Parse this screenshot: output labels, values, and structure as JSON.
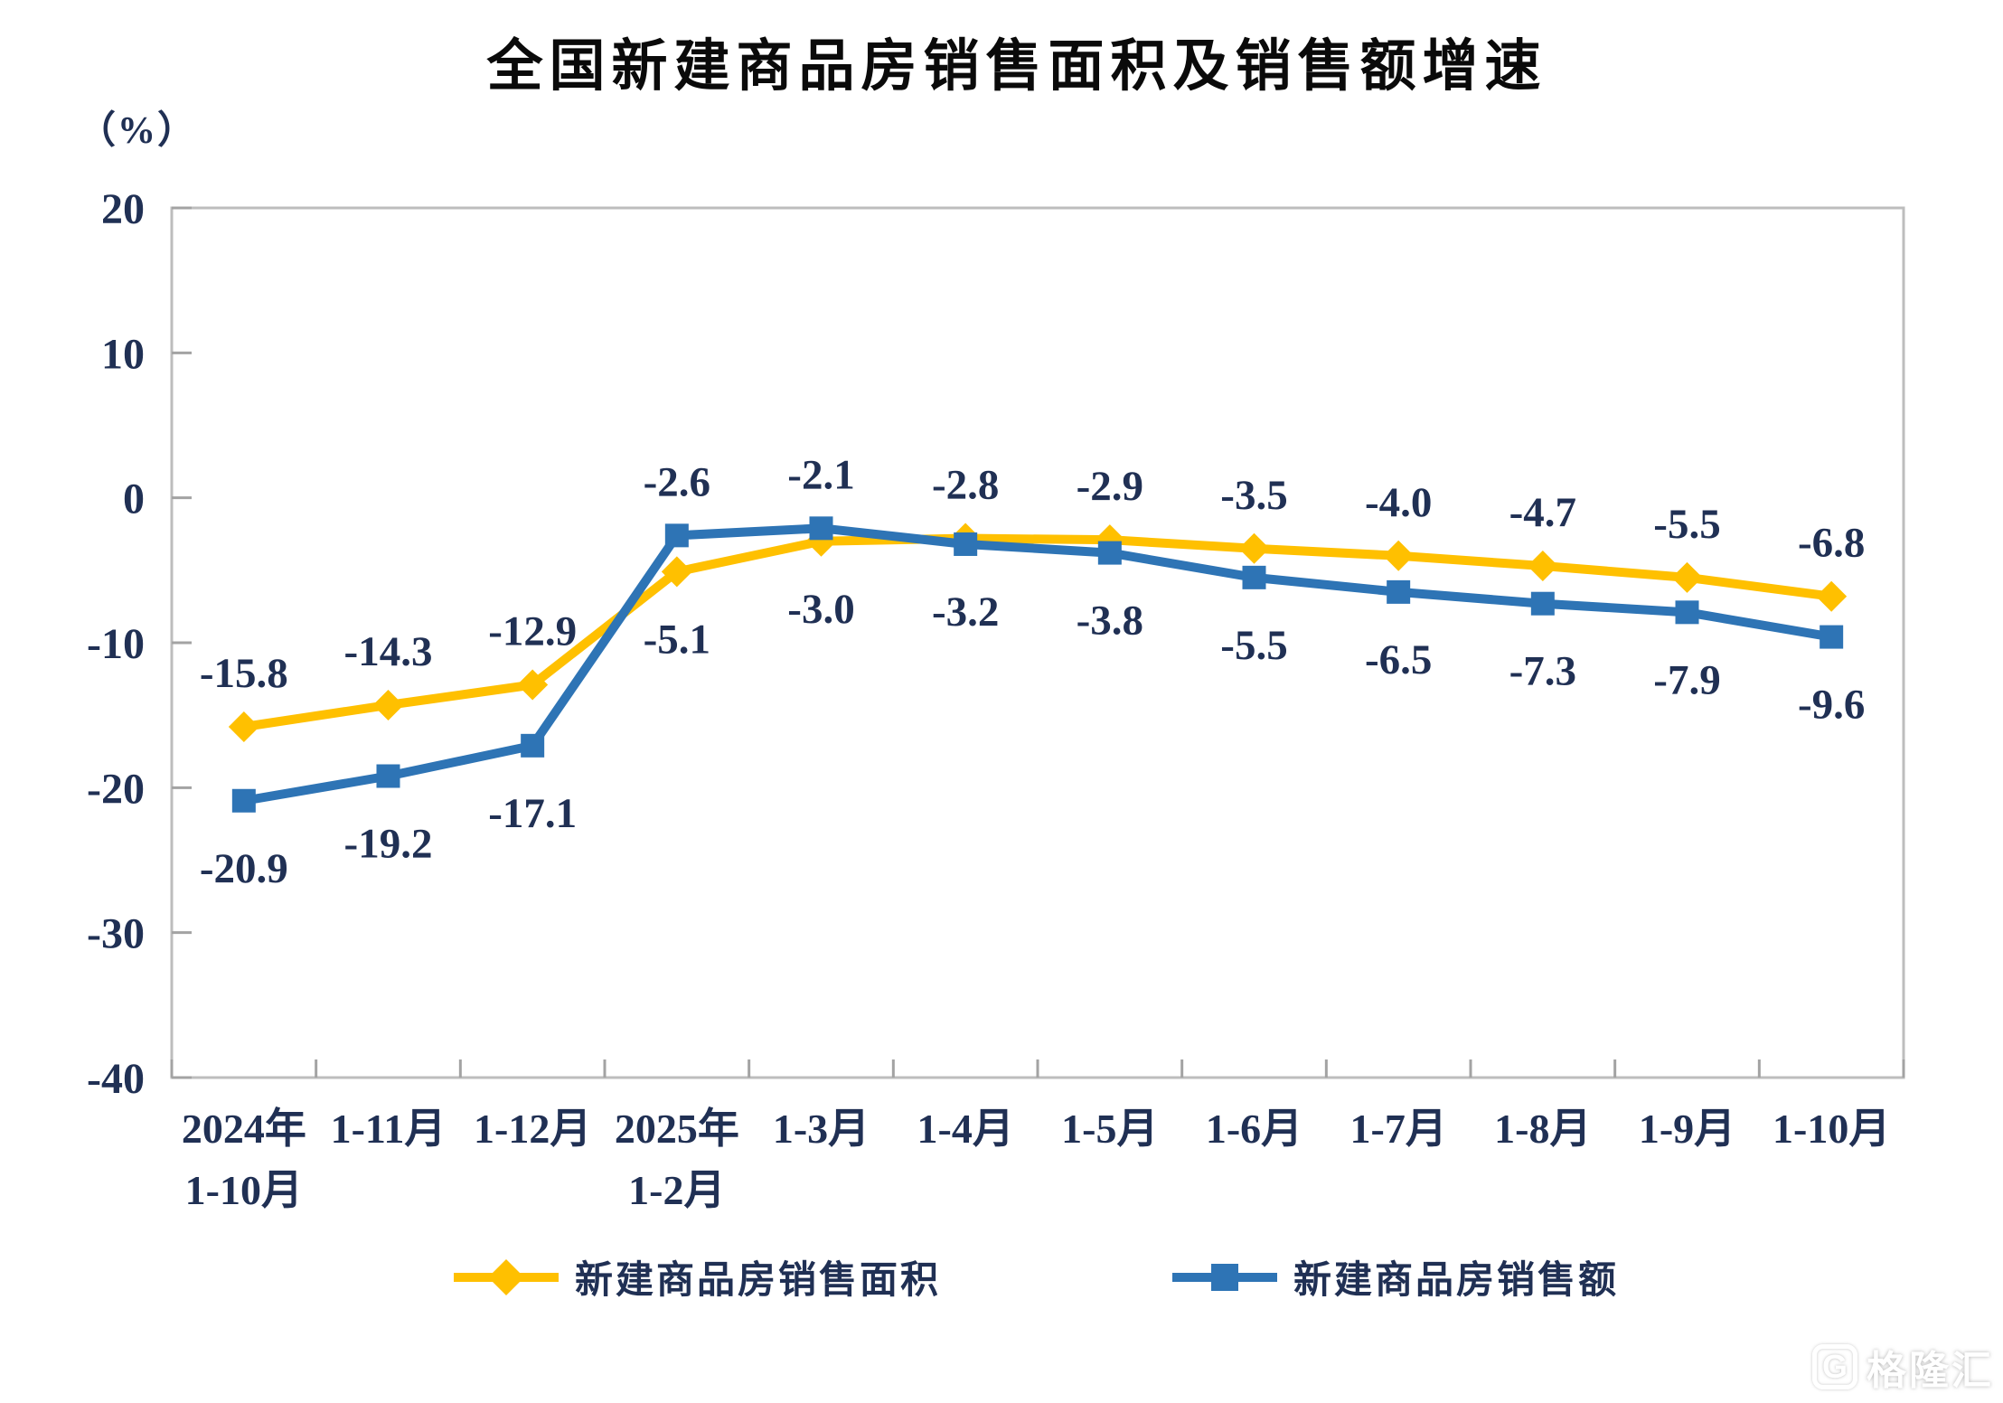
{
  "title": "全国新建商品房销售面积及销售额增速",
  "y_axis_unit": "（%）",
  "colors": {
    "series_area": "#FFC000",
    "series_amount": "#2E74B5",
    "axis_line": "#A3A3A3",
    "plot_border": "#BDBDBD",
    "text": "#203054",
    "title": "#0A0A0A"
  },
  "chart_data": {
    "type": "line",
    "title": "全国新建商品房销售面积及销售额增速",
    "ylabel": "（%）",
    "xlabel": "",
    "ylim": [
      -40,
      20
    ],
    "y_ticks": [
      20,
      10,
      0,
      -10,
      -20,
      -30,
      -40
    ],
    "grid": false,
    "legend_position": "bottom",
    "data_labels": true,
    "categories": [
      "2024年\n1-10月",
      "1-11月",
      "1-12月",
      "2025年\n1-2月",
      "1-3月",
      "1-4月",
      "1-5月",
      "1-6月",
      "1-7月",
      "1-8月",
      "1-9月",
      "1-10月"
    ],
    "series": [
      {
        "name": "新建商品房销售面积",
        "marker": "diamond",
        "color": "#FFC000",
        "values": [
          -15.8,
          -14.3,
          -12.9,
          -5.1,
          -3.0,
          -2.8,
          -2.9,
          -3.5,
          -4.0,
          -4.7,
          -5.5,
          -6.8
        ]
      },
      {
        "name": "新建商品房销售额",
        "marker": "square",
        "color": "#2E74B5",
        "values": [
          -20.9,
          -19.2,
          -17.1,
          -2.6,
          -2.1,
          -3.2,
          -3.8,
          -5.5,
          -6.5,
          -7.3,
          -7.9,
          -9.6
        ]
      }
    ]
  },
  "watermark": {
    "logo": "G",
    "brand": "格隆汇"
  }
}
